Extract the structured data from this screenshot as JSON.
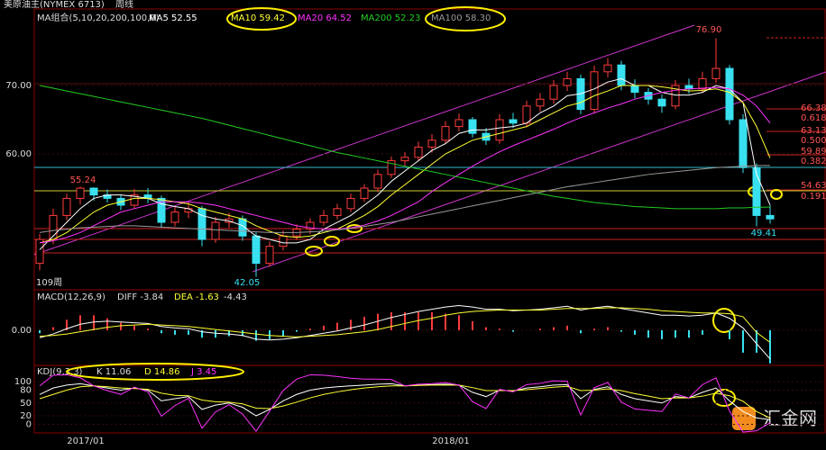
{
  "chart_data": {
    "type": "candlestick",
    "title": "美原油主(NYMEX 6713)",
    "subtitle": "周线",
    "ma_header": "MA组合(5,10,20,200,100,0)",
    "categories": [
      null,
      null,
      null,
      "2017/01",
      null,
      null,
      null,
      null,
      null,
      null,
      null,
      null,
      null,
      null,
      null,
      null,
      null,
      null,
      null,
      null,
      null,
      null,
      null,
      null,
      null,
      null,
      null,
      null,
      null,
      null,
      "2018/01",
      null,
      null,
      null,
      null,
      null,
      null,
      null,
      null,
      null,
      null,
      null,
      null,
      null,
      null,
      null,
      null,
      null,
      null,
      null,
      null,
      null,
      null,
      null,
      null
    ],
    "ylim": [
      40.4,
      78.55
    ],
    "yticks": [
      {
        "value": 70,
        "label": "70.00"
      },
      {
        "value": 60,
        "label": "60.00"
      }
    ],
    "up_color": "#ff3b3b",
    "down_color": "#38e0f0",
    "candles": [
      [
        44,
        48.3,
        43,
        47.5
      ],
      [
        47.5,
        52,
        46.8,
        51
      ],
      [
        51,
        54.2,
        50.3,
        53.5
      ],
      [
        53.5,
        55.24,
        52.6,
        55
      ],
      [
        55,
        55.1,
        53.2,
        54
      ],
      [
        54,
        54.8,
        52.9,
        53.5
      ],
      [
        53.5,
        54.1,
        51.8,
        52.5
      ],
      [
        52.5,
        54.9,
        52,
        54
      ],
      [
        54,
        55,
        52.8,
        53.5
      ],
      [
        53.5,
        53.9,
        49.2,
        50
      ],
      [
        50,
        52.3,
        49.4,
        51.5
      ],
      [
        51.5,
        52.9,
        50.6,
        52
      ],
      [
        52,
        52.4,
        46.5,
        47.5
      ],
      [
        47.5,
        50.8,
        47,
        50
      ],
      [
        50,
        51.4,
        49.2,
        50.5
      ],
      [
        50.5,
        51,
        47.3,
        48
      ],
      [
        48,
        48.5,
        42.05,
        44
      ],
      [
        44,
        47.2,
        43.5,
        46.5
      ],
      [
        46.5,
        48.8,
        45.9,
        48
      ],
      [
        48,
        49.7,
        47.4,
        49
      ],
      [
        49,
        50.6,
        48.3,
        50
      ],
      [
        50,
        51.8,
        49.5,
        51
      ],
      [
        51,
        52.7,
        50.4,
        52
      ],
      [
        52,
        54.2,
        51.5,
        53.5
      ],
      [
        53.5,
        55.6,
        53,
        55
      ],
      [
        55,
        57.7,
        54.4,
        57
      ],
      [
        57,
        59.6,
        56.5,
        59
      ],
      [
        59,
        60.3,
        58.2,
        59.5
      ],
      [
        59.5,
        61.8,
        58.9,
        61
      ],
      [
        61,
        62.9,
        60.2,
        62
      ],
      [
        62,
        64.8,
        61.4,
        64
      ],
      [
        64,
        65.9,
        63.3,
        65
      ],
      [
        65,
        65.4,
        62.4,
        63
      ],
      [
        63,
        63.8,
        61.3,
        62
      ],
      [
        62,
        65.8,
        61.5,
        65
      ],
      [
        65,
        66,
        63.8,
        64.5
      ],
      [
        64.5,
        67.8,
        64,
        67
      ],
      [
        67,
        68.9,
        66.2,
        68
      ],
      [
        68,
        70.8,
        67.3,
        70
      ],
      [
        70,
        72,
        69.2,
        71
      ],
      [
        71,
        71.6,
        65.8,
        66.5
      ],
      [
        66.5,
        72.9,
        66,
        72
      ],
      [
        72,
        74,
        71.2,
        73
      ],
      [
        73,
        73.6,
        69.3,
        70
      ],
      [
        70,
        70.9,
        68.1,
        69
      ],
      [
        69,
        69.6,
        67.2,
        68
      ],
      [
        68,
        68.7,
        66,
        67
      ],
      [
        67,
        70.8,
        66.5,
        70
      ],
      [
        70,
        71,
        68.8,
        69.5
      ],
      [
        69.5,
        72,
        68.9,
        71
      ],
      [
        71,
        76.9,
        70.4,
        72.5
      ],
      [
        72.5,
        73,
        64.3,
        65
      ],
      [
        65,
        65.8,
        57.2,
        58
      ],
      [
        58,
        58.6,
        49.41,
        51
      ],
      [
        51,
        52.5,
        49.8,
        50.5
      ]
    ],
    "series": [
      {
        "label": "MA5 52.55",
        "color": "#ffffff",
        "values": [
          46,
          48,
          50,
          52,
          53.5,
          54,
          54,
          53.8,
          53.5,
          52.7,
          52.3,
          52,
          51,
          50.5,
          50.2,
          49.5,
          48,
          47.5,
          47,
          47,
          47.5,
          49,
          50,
          51,
          52.5,
          54,
          56,
          57.5,
          59,
          60.5,
          61.5,
          63,
          63.5,
          63.5,
          63.8,
          64,
          64.5,
          66,
          67,
          68.5,
          68.8,
          69.5,
          70.5,
          71,
          70,
          70,
          69,
          68.6,
          68.6,
          69,
          70,
          69.5,
          67.5,
          57,
          52.55
        ]
      },
      {
        "label": "MA10 59.42",
        "color": "#ffff33",
        "values": [
          47,
          47.5,
          48.5,
          50,
          51.5,
          52.5,
          53,
          53.5,
          53.5,
          53.3,
          53,
          52.7,
          52,
          51.5,
          51,
          50.5,
          49.5,
          48.7,
          48,
          47.8,
          48,
          48.5,
          49,
          50,
          51,
          52.3,
          54,
          55.5,
          57,
          58.5,
          60,
          61,
          62,
          62.5,
          63,
          63.5,
          64,
          65,
          66,
          67,
          67.5,
          68.5,
          69.2,
          70,
          70,
          70,
          69.8,
          69.5,
          69.2,
          69.3,
          69.5,
          69,
          67.5,
          64,
          59.42
        ]
      },
      {
        "label": "MA20 64.52",
        "color": "#ff33ff",
        "values": [
          47,
          47.3,
          47.8,
          48.5,
          49.5,
          50.5,
          51.5,
          52,
          52.5,
          53,
          53,
          53,
          52.8,
          52.5,
          52,
          51.5,
          51,
          50.5,
          50,
          49.5,
          49.2,
          49,
          49,
          49.2,
          49.6,
          50.2,
          51,
          52,
          53,
          54.5,
          55.8,
          57,
          58.2,
          59.3,
          60.3,
          61.2,
          62,
          62.8,
          63.6,
          64.5,
          65.3,
          66,
          66.7,
          67.3,
          68,
          68.5,
          69,
          69.3,
          69.5,
          69.6,
          69.7,
          69.5,
          68.6,
          67,
          64.52
        ]
      },
      {
        "label": "MA200 52.23",
        "color": "#22cc22",
        "values": [
          70,
          69.6,
          69.2,
          68.8,
          68.4,
          68,
          67.6,
          67.2,
          66.8,
          66.4,
          66,
          65.6,
          65.2,
          64.7,
          64.2,
          63.7,
          63.2,
          62.7,
          62.2,
          61.7,
          61.2,
          60.7,
          60.2,
          59.8,
          59.4,
          59,
          58.6,
          58.2,
          57.8,
          57.4,
          57,
          56.6,
          56.2,
          55.8,
          55.4,
          55,
          54.6,
          54.2,
          53.8,
          53.5,
          53.2,
          52.9,
          52.7,
          52.5,
          52.3,
          52.2,
          52.1,
          52,
          52,
          52,
          52,
          52.1,
          52.1,
          52.2,
          52.23
        ]
      },
      {
        "label": "MA100 58.30",
        "color": "#999999",
        "values": [
          48.5,
          48.8,
          49,
          49.2,
          49.3,
          49.4,
          49.5,
          49.5,
          49.4,
          49.3,
          49.2,
          49.1,
          49,
          48.9,
          48.8,
          48.7,
          48.6,
          48.5,
          48.5,
          48.5,
          48.6,
          48.7,
          48.9,
          49.1,
          49.4,
          49.7,
          50,
          50.4,
          50.8,
          51.2,
          51.6,
          52,
          52.4,
          52.8,
          53.2,
          53.6,
          54,
          54.4,
          54.8,
          55.2,
          55.5,
          55.8,
          56.1,
          56.4,
          56.7,
          57,
          57.2,
          57.4,
          57.6,
          57.8,
          58,
          58.1,
          58.2,
          58.3,
          58.3
        ]
      }
    ],
    "extreme_labels": [
      "76.90",
      "55.24",
      "42.05",
      "49.41"
    ],
    "period_label": "109周",
    "fib_labels": [
      "66.38",
      "0.618",
      "63.13",
      "0.500",
      "59.89",
      "0.382",
      "54.63",
      "0.191"
    ],
    "macd": {
      "header": "MACD(12,26,9)",
      "diff_label": "DIFF -3.84",
      "dea_label": "DEA -1.63",
      "bar_label": "-4.43",
      "ylim": [
        -4.7,
        5.4
      ],
      "yticks": [
        {
          "value": 0,
          "label": "0.00"
        }
      ],
      "bars": [
        -0.4,
        0.4,
        1.4,
        2.0,
        2.0,
        1.6,
        1.0,
        0.6,
        0.2,
        -0.4,
        -0.6,
        -0.6,
        -1.0,
        -1.0,
        -0.8,
        -0.8,
        -1.4,
        -1.2,
        -0.8,
        -0.2,
        0.2,
        0.6,
        1.0,
        1.4,
        1.8,
        2.2,
        2.4,
        2.4,
        2.4,
        2.4,
        2.2,
        2.0,
        1.2,
        0.4,
        0.2,
        -0.2,
        0,
        0.2,
        0.4,
        0.6,
        -0.4,
        0.2,
        0.4,
        -0.2,
        -0.6,
        -1.0,
        -1.2,
        -1.0,
        -1.0,
        -0.6,
        0,
        -1.2,
        -3.0,
        -3.0,
        -4.43
      ],
      "diff": [
        -1,
        -0.5,
        0.2,
        0.8,
        1.1,
        1.2,
        1.1,
        1.0,
        0.9,
        0.5,
        0.3,
        0.2,
        -0.2,
        -0.4,
        -0.5,
        -0.7,
        -1.2,
        -1.3,
        -1.2,
        -1.0,
        -0.7,
        -0.4,
        -0.1,
        0.3,
        0.7,
        1.2,
        1.7,
        2.1,
        2.5,
        2.8,
        3.1,
        3.3,
        3.1,
        2.8,
        2.8,
        2.6,
        2.7,
        2.8,
        3.0,
        3.2,
        2.7,
        3.0,
        3.2,
        2.9,
        2.6,
        2.3,
        2.0,
        2.0,
        1.9,
        2.0,
        2.3,
        1.6,
        0.3,
        -1.8,
        -3.84
      ],
      "dea": [
        -0.8,
        -0.7,
        -0.5,
        -0.2,
        0.1,
        0.4,
        0.6,
        0.7,
        0.8,
        0.7,
        0.6,
        0.5,
        0.3,
        0.1,
        -0.1,
        -0.3,
        -0.5,
        -0.7,
        -0.8,
        -0.9,
        -0.8,
        -0.7,
        -0.6,
        -0.4,
        -0.2,
        0.1,
        0.5,
        0.9,
        1.3,
        1.6,
        2.0,
        2.3,
        2.5,
        2.6,
        2.7,
        2.7,
        2.7,
        2.7,
        2.8,
        2.9,
        2.9,
        2.9,
        3.0,
        3.0,
        2.9,
        2.8,
        2.6,
        2.5,
        2.4,
        2.3,
        2.3,
        2.2,
        1.8,
        -0.3,
        -1.63
      ]
    },
    "kdj": {
      "header": "KDJ(9,3,3)",
      "k_label": "K 11.06",
      "d_label": "D 14.86",
      "j_label": "J 3.45",
      "ylim": [
        -20,
        138
      ],
      "yticks": [
        100,
        80,
        50,
        20,
        0
      ],
      "k": [
        70,
        85,
        92,
        95,
        90,
        85,
        80,
        85,
        80,
        55,
        60,
        65,
        35,
        45,
        50,
        40,
        20,
        35,
        55,
        70,
        80,
        85,
        88,
        90,
        92,
        94,
        95,
        90,
        92,
        93,
        94,
        92,
        75,
        65,
        80,
        78,
        85,
        88,
        92,
        93,
        60,
        82,
        88,
        70,
        60,
        55,
        50,
        65,
        62,
        75,
        85,
        55,
        30,
        15,
        11.06
      ],
      "d": [
        60,
        70,
        80,
        88,
        90,
        88,
        85,
        84,
        82,
        73,
        68,
        67,
        57,
        53,
        52,
        48,
        38,
        37,
        43,
        52,
        62,
        70,
        76,
        81,
        85,
        88,
        90,
        90,
        91,
        92,
        92,
        92,
        86,
        79,
        79,
        79,
        81,
        84,
        87,
        89,
        79,
        80,
        83,
        79,
        72,
        66,
        60,
        62,
        62,
        66,
        73,
        67,
        54,
        30,
        14.86
      ],
      "j": [
        90,
        115,
        116,
        109,
        90,
        79,
        70,
        87,
        76,
        19,
        44,
        61,
        -9,
        29,
        46,
        24,
        -16,
        31,
        79,
        106,
        116,
        115,
        112,
        108,
        106,
        106,
        105,
        90,
        94,
        95,
        98,
        92,
        53,
        37,
        82,
        76,
        93,
        96,
        102,
        101,
        22,
        86,
        98,
        52,
        36,
        33,
        30,
        71,
        62,
        93,
        109,
        31,
        -18,
        -15,
        3.45
      ]
    },
    "watermark": "汇金网"
  }
}
